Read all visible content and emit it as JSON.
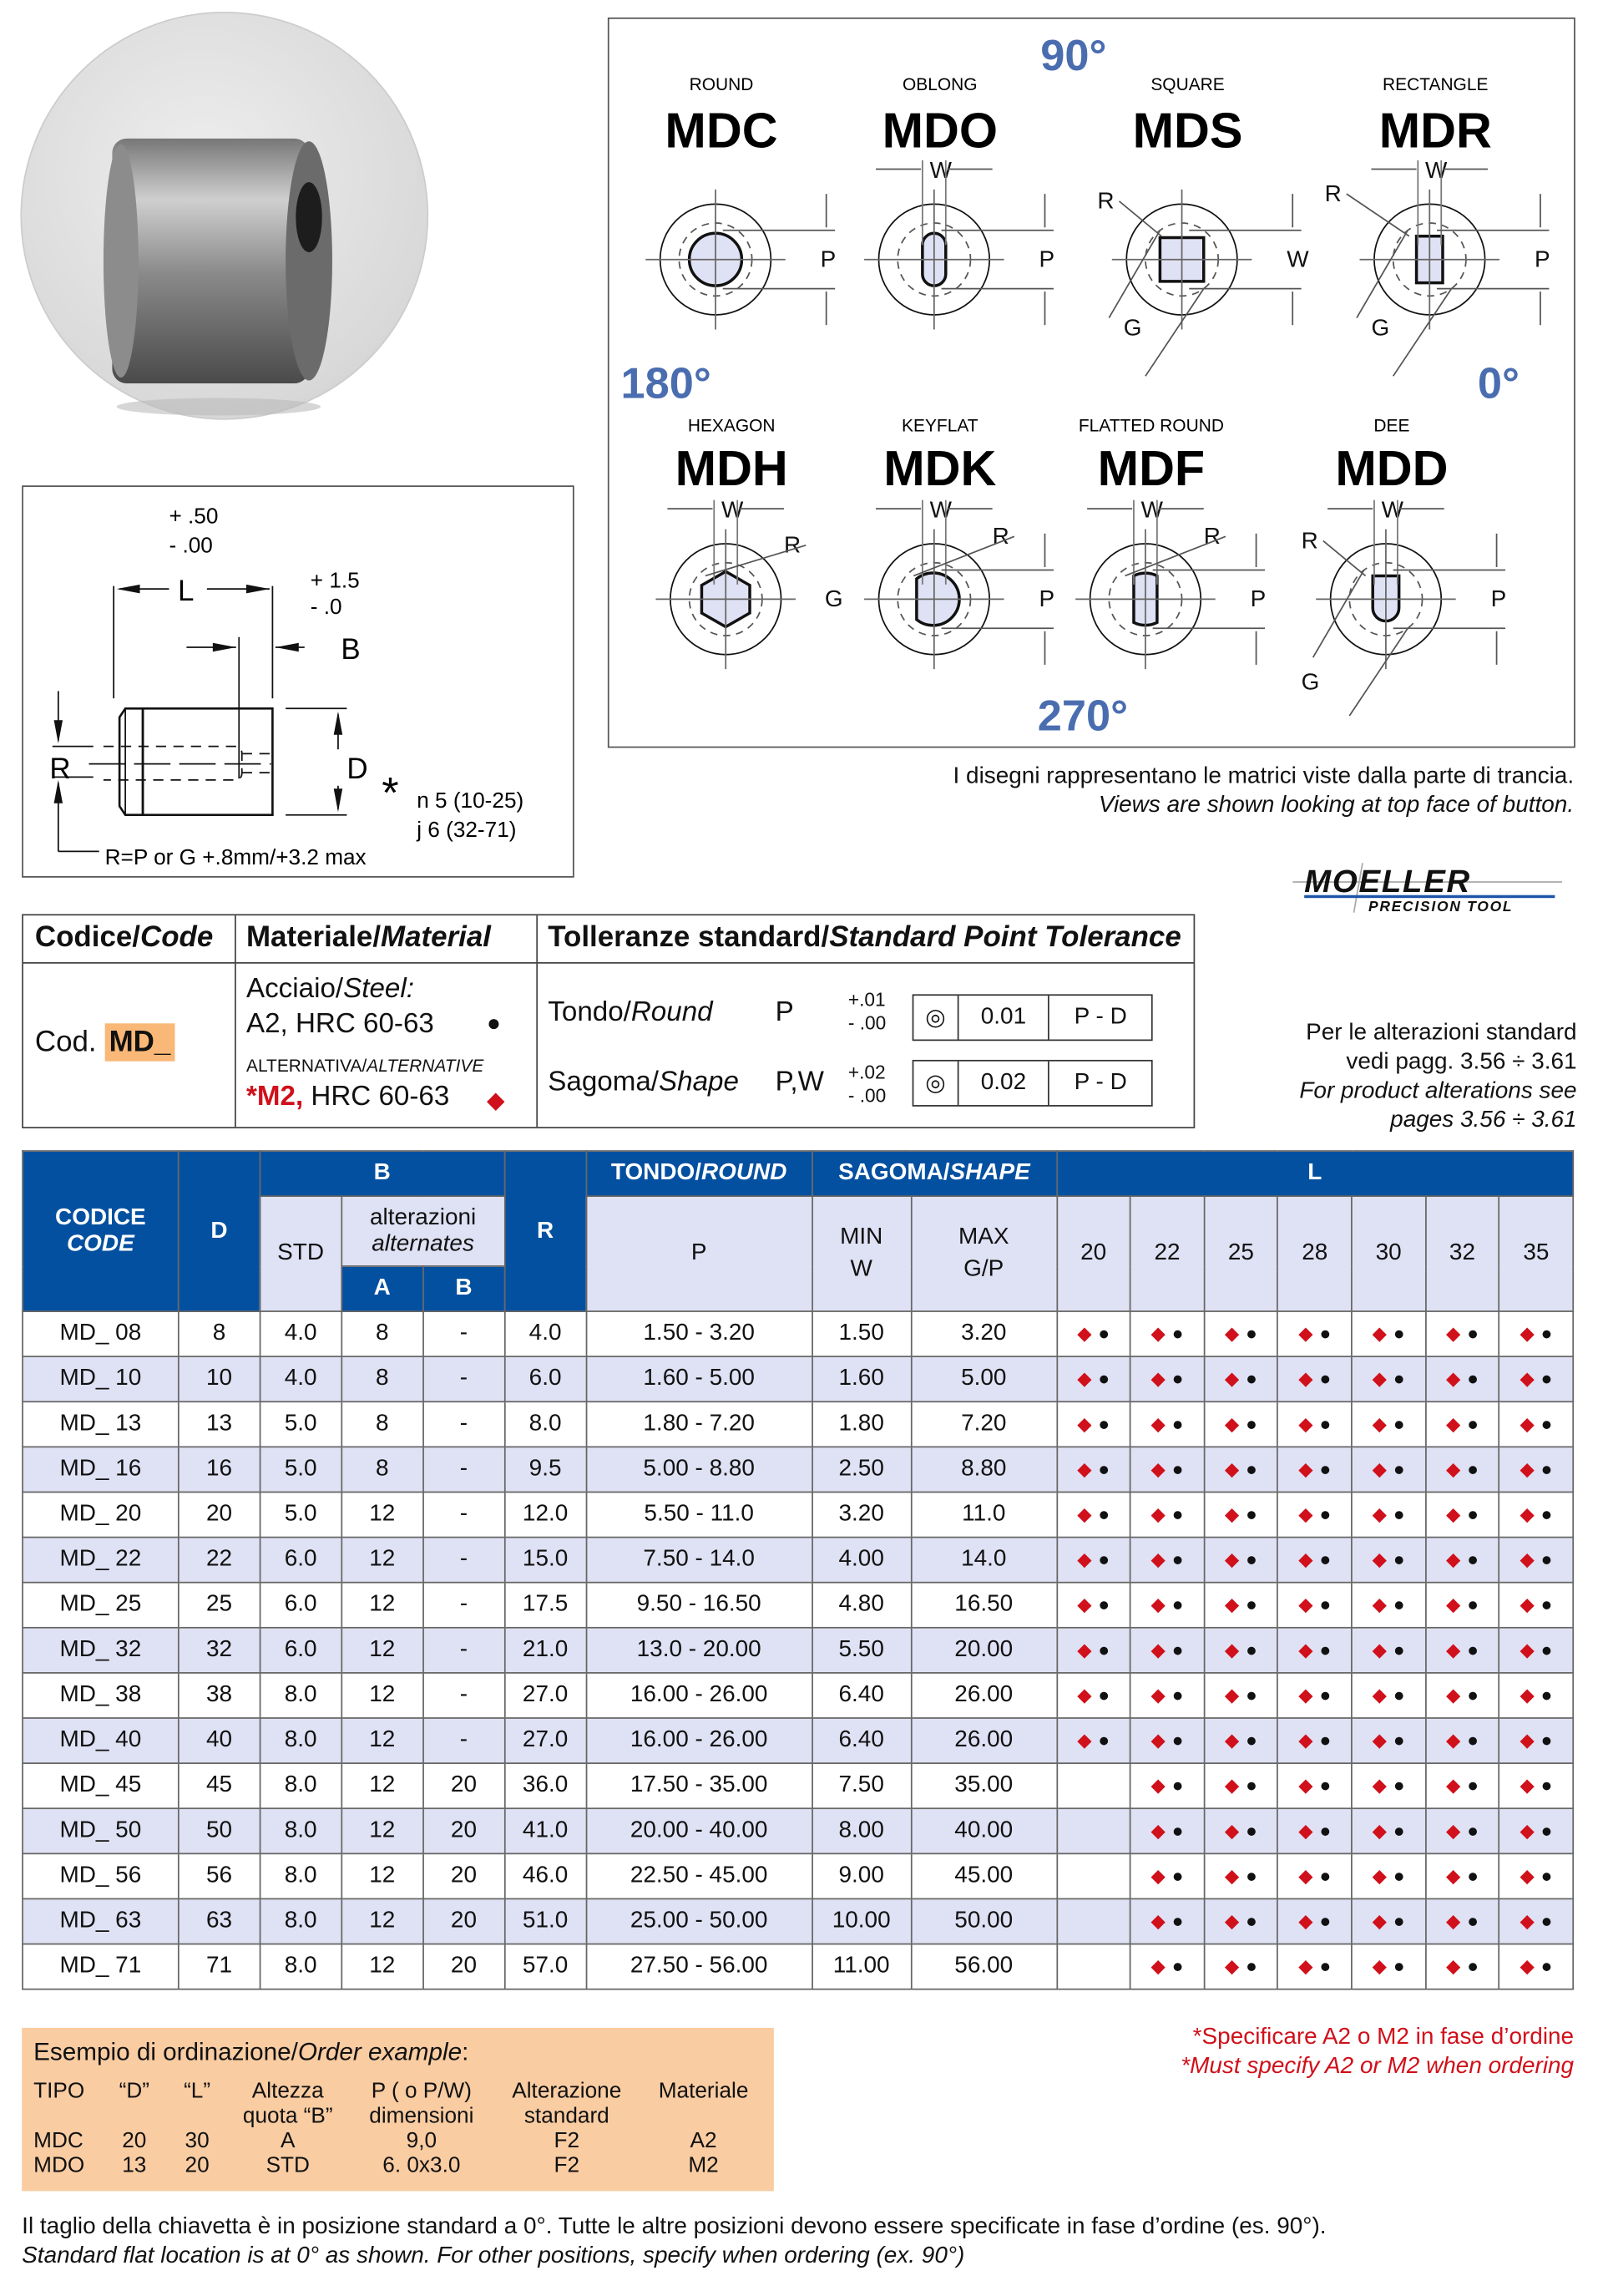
{
  "diagram": {
    "angles": {
      "a90": "90°",
      "a180": "180°",
      "a0": "0°",
      "a270": "270°"
    },
    "items": [
      {
        "type": "ROUND",
        "code": "MDC",
        "shape": "round",
        "dims": [
          "P"
        ]
      },
      {
        "type": "OBLONG",
        "code": "MDO",
        "shape": "oblong",
        "dims": [
          "W",
          "P"
        ]
      },
      {
        "type": "SQUARE",
        "code": "MDS",
        "shape": "square",
        "dims": [
          "R",
          "W",
          "G"
        ]
      },
      {
        "type": "RECTANGLE",
        "code": "MDR",
        "shape": "rectangle",
        "dims": [
          "W",
          "R",
          "P",
          "G"
        ]
      },
      {
        "type": "HEXAGON",
        "code": "MDH",
        "shape": "hexagon",
        "dims": [
          "W",
          "R",
          "G"
        ]
      },
      {
        "type": "KEYFLAT",
        "code": "MDK",
        "shape": "keyflat",
        "dims": [
          "W",
          "R",
          "P"
        ]
      },
      {
        "type": "FLATTED ROUND",
        "code": "MDF",
        "shape": "flatted",
        "dims": [
          "W",
          "R",
          "P"
        ]
      },
      {
        "type": "DEE",
        "code": "MDD",
        "shape": "dee",
        "dims": [
          "W",
          "R",
          "P",
          "G"
        ]
      }
    ],
    "caption_it": "I disegni rappresentano le matrici viste dalla parte di trancia.",
    "caption_en": "Views are shown looking at top face of button.",
    "angle_color": "#4a6db0"
  },
  "drawing": {
    "l_tol_plus": "+ .50",
    "l_tol_minus": "-  .00",
    "b_tol_plus": "+ 1.5",
    "b_tol_minus": "- .0",
    "L": "L",
    "B": "B",
    "R": "R",
    "D": "D",
    "asterisk": "*",
    "fit1": "n 5   (10-25)",
    "fit2": "j 6   (32-71)",
    "r_formula": "R=P or G +.8mm/+3.2 max"
  },
  "logo": {
    "name": "MOELLER",
    "sub": "PRECISION TOOL"
  },
  "spec": {
    "h_code_it": "Codice/",
    "h_code_en": "Code",
    "h_mat_it": "Materiale/",
    "h_mat_en": "Material",
    "h_tol_it": "Tolleranze standard/",
    "h_tol_en": "Standard Point Tolerance",
    "cod_label": "Cod.",
    "cod_value": "MD_",
    "steel_it": "Acciaio/",
    "steel_en": "Steel:",
    "mat1": "A2, HRC 60-63",
    "alt_it": "ALTERNATIVA/",
    "alt_en": "ALTERNATIVE",
    "mat2_code": "*M2,",
    "mat2_rest": " HRC 60-63",
    "round_it": "Tondo/",
    "round_en": "Round",
    "round_sym": "P",
    "round_plus": "+.01",
    "round_minus": "- .00",
    "round_tol": "0.01",
    "round_ref": "P - D",
    "shape_it": "Sagoma/",
    "shape_en": "Shape",
    "shape_sym": "P,W",
    "shape_plus": "+.02",
    "shape_minus": "- .00",
    "shape_tol": "0.02",
    "shape_ref": "P - D",
    "highlight_color": "#f9b877"
  },
  "alterations": {
    "l1": "Per le alterazioni standard",
    "l2": "vedi pagg. 3.56 ÷ 3.61",
    "l3": "For product alterations see",
    "l4": "pages 3.56 ÷ 3.61"
  },
  "table": {
    "h": {
      "codice": "CODICE",
      "code": "CODE",
      "d": "D",
      "b": "B",
      "std": "STD",
      "alt_it": "alterazioni",
      "alt_en": "alternates",
      "a": "A",
      "bb": "B",
      "r": "R",
      "tondo": "TONDO/",
      "round": "ROUND",
      "sagoma": "SAGOMA/",
      "shape": "SHAPE",
      "l": "L",
      "p": "P",
      "min": "MIN",
      "w": "W",
      "max": "MAX",
      "gp": "G/P"
    },
    "l_values": [
      "20",
      "22",
      "25",
      "28",
      "30",
      "32",
      "35"
    ],
    "header_color": "#0450a0",
    "stripe_color": "#dfe1f4",
    "m2_color": "#d0101a",
    "rows": [
      {
        "code": "MD_ 08",
        "d": "8",
        "std": "4.0",
        "a": "8",
        "b": "-",
        "r": "4.0",
        "p": "1.50 - 3.20",
        "w": "1.50",
        "gp": "3.20",
        "avail": [
          1,
          1,
          1,
          1,
          1,
          1,
          1
        ]
      },
      {
        "code": "MD_ 10",
        "d": "10",
        "std": "4.0",
        "a": "8",
        "b": "-",
        "r": "6.0",
        "p": "1.60 - 5.00",
        "w": "1.60",
        "gp": "5.00",
        "avail": [
          1,
          1,
          1,
          1,
          1,
          1,
          1
        ]
      },
      {
        "code": "MD_ 13",
        "d": "13",
        "std": "5.0",
        "a": "8",
        "b": "-",
        "r": "8.0",
        "p": "1.80 - 7.20",
        "w": "1.80",
        "gp": "7.20",
        "avail": [
          1,
          1,
          1,
          1,
          1,
          1,
          1
        ]
      },
      {
        "code": "MD_ 16",
        "d": "16",
        "std": "5.0",
        "a": "8",
        "b": "-",
        "r": "9.5",
        "p": "5.00 - 8.80",
        "w": "2.50",
        "gp": "8.80",
        "avail": [
          1,
          1,
          1,
          1,
          1,
          1,
          1
        ]
      },
      {
        "code": "MD_ 20",
        "d": "20",
        "std": "5.0",
        "a": "12",
        "b": "-",
        "r": "12.0",
        "p": "5.50 - 11.0",
        "w": "3.20",
        "gp": "11.0",
        "avail": [
          1,
          1,
          1,
          1,
          1,
          1,
          1
        ]
      },
      {
        "code": "MD_ 22",
        "d": "22",
        "std": "6.0",
        "a": "12",
        "b": "-",
        "r": "15.0",
        "p": "7.50 - 14.0",
        "w": "4.00",
        "gp": "14.0",
        "avail": [
          1,
          1,
          1,
          1,
          1,
          1,
          1
        ]
      },
      {
        "code": "MD_ 25",
        "d": "25",
        "std": "6.0",
        "a": "12",
        "b": "-",
        "r": "17.5",
        "p": "9.50 - 16.50",
        "w": "4.80",
        "gp": "16.50",
        "avail": [
          1,
          1,
          1,
          1,
          1,
          1,
          1
        ]
      },
      {
        "code": "MD_ 32",
        "d": "32",
        "std": "6.0",
        "a": "12",
        "b": "-",
        "r": "21.0",
        "p": "13.0 - 20.00",
        "w": "5.50",
        "gp": "20.00",
        "avail": [
          1,
          1,
          1,
          1,
          1,
          1,
          1
        ]
      },
      {
        "code": "MD_ 38",
        "d": "38",
        "std": "8.0",
        "a": "12",
        "b": "-",
        "r": "27.0",
        "p": "16.00 - 26.00",
        "w": "6.40",
        "gp": "26.00",
        "avail": [
          1,
          1,
          1,
          1,
          1,
          1,
          1
        ]
      },
      {
        "code": "MD_ 40",
        "d": "40",
        "std": "8.0",
        "a": "12",
        "b": "-",
        "r": "27.0",
        "p": "16.00 - 26.00",
        "w": "6.40",
        "gp": "26.00",
        "avail": [
          1,
          1,
          1,
          1,
          1,
          1,
          1
        ]
      },
      {
        "code": "MD_ 45",
        "d": "45",
        "std": "8.0",
        "a": "12",
        "b": "20",
        "r": "36.0",
        "p": "17.50 - 35.00",
        "w": "7.50",
        "gp": "35.00",
        "avail": [
          0,
          1,
          1,
          1,
          1,
          1,
          1
        ]
      },
      {
        "code": "MD_ 50",
        "d": "50",
        "std": "8.0",
        "a": "12",
        "b": "20",
        "r": "41.0",
        "p": "20.00 - 40.00",
        "w": "8.00",
        "gp": "40.00",
        "avail": [
          0,
          1,
          1,
          1,
          1,
          1,
          1
        ]
      },
      {
        "code": "MD_ 56",
        "d": "56",
        "std": "8.0",
        "a": "12",
        "b": "20",
        "r": "46.0",
        "p": "22.50 - 45.00",
        "w": "9.00",
        "gp": "45.00",
        "avail": [
          0,
          1,
          1,
          1,
          1,
          1,
          1
        ]
      },
      {
        "code": "MD_ 63",
        "d": "63",
        "std": "8.0",
        "a": "12",
        "b": "20",
        "r": "51.0",
        "p": "25.00 - 50.00",
        "w": "10.00",
        "gp": "50.00",
        "avail": [
          0,
          1,
          1,
          1,
          1,
          1,
          1
        ]
      },
      {
        "code": "MD_ 71",
        "d": "71",
        "std": "8.0",
        "a": "12",
        "b": "20",
        "r": "57.0",
        "p": "27.50 - 56.00",
        "w": "11.00",
        "gp": "56.00",
        "avail": [
          0,
          1,
          1,
          1,
          1,
          1,
          1
        ]
      }
    ]
  },
  "note": {
    "it": "*Specificare A2 o M2 in fase d’ordine",
    "en": "*Must specify A2 or M2 when ordering"
  },
  "order": {
    "title_it": "Esempio di ordinazione/",
    "title_en": "Order example",
    "headers": [
      [
        "TIPO",
        ""
      ],
      [
        "“D”",
        ""
      ],
      [
        "“L”",
        ""
      ],
      [
        "Altezza",
        "quota “B”"
      ],
      [
        "P ( o P/W)",
        "dimensioni"
      ],
      [
        "Alterazione",
        "standard"
      ],
      [
        "Materiale",
        ""
      ]
    ],
    "rows": [
      [
        "MDC",
        "20",
        "30",
        "A",
        "9,0",
        "F2",
        "A2"
      ],
      [
        "MDO",
        "13",
        "20",
        "STD",
        "6. 0x3.0",
        "F2",
        "M2"
      ]
    ],
    "bg_color": "#f9cca2"
  },
  "footer": {
    "it": "Il taglio della chiavetta è in posizione standard a 0°. Tutte le altre posizioni devono essere specificate in fase d’ordine (es. 90°).",
    "en": "Standard flat location is at 0° as shown. For other positions, specify when ordering (ex. 90°)"
  }
}
